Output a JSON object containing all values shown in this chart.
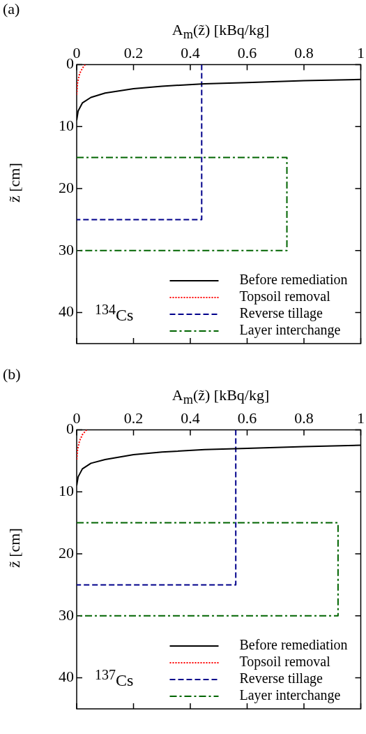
{
  "chart_data": [
    {
      "type": "line",
      "xlabel": "A$_{m}$(z̃) [kBq/kg]",
      "ylabel": "z̃ [cm]",
      "annotations": [
        "(a)",
        "$^{134}$Cs"
      ],
      "xlim": [
        0,
        1
      ],
      "xticks": [
        0,
        0.2,
        0.4,
        0.6,
        0.8,
        1
      ],
      "ylim": [
        45,
        0
      ],
      "yticks": [
        0,
        10,
        20,
        30,
        40
      ],
      "grid": false,
      "legend": "bottom right",
      "marker": "none",
      "series": [
        {
          "name": "Before remediation",
          "color": "#000000",
          "line_style": "solid",
          "x": [
            1.0,
            0.8,
            0.6,
            0.45,
            0.3,
            0.2,
            0.1,
            0.05,
            0.02,
            0.005,
            0
          ],
          "values": [
            2.4,
            2.6,
            2.9,
            3.1,
            3.5,
            3.9,
            4.6,
            5.3,
            6.2,
            7.5,
            9
          ]
        },
        {
          "name": "Topsoil removal",
          "color": "#ff0000",
          "line_style": "dotted",
          "x": [
            0.03,
            0.02,
            0.01,
            0.003,
            0
          ],
          "values": [
            0,
            0.6,
            1.5,
            3,
            5
          ]
        },
        {
          "name": "Reverse tillage",
          "color": "#00008b",
          "line_style": "dashed",
          "x": [
            0.44,
            0.44,
            0
          ],
          "values": [
            0,
            25,
            25
          ]
        },
        {
          "name": "Layer interchange",
          "color": "#006400",
          "line_style": "dashdot",
          "x": [
            0,
            0.74,
            0.74,
            0
          ],
          "values": [
            15,
            15,
            30,
            30
          ]
        }
      ]
    },
    {
      "type": "line",
      "xlabel": "A$_{m}$(z̃) [kBq/kg]",
      "ylabel": "z̃ [cm]",
      "annotations": [
        "(b)",
        "$^{137}$Cs"
      ],
      "xlim": [
        0,
        1
      ],
      "xticks": [
        0,
        0.2,
        0.4,
        0.6,
        0.8,
        1
      ],
      "ylim": [
        45,
        0
      ],
      "yticks": [
        0,
        10,
        20,
        30,
        40
      ],
      "grid": false,
      "legend": "bottom right",
      "marker": "none",
      "series": [
        {
          "name": "Before remediation",
          "color": "#000000",
          "line_style": "solid",
          "x": [
            1.0,
            0.8,
            0.6,
            0.45,
            0.3,
            0.2,
            0.1,
            0.05,
            0.02,
            0.005,
            0
          ],
          "values": [
            2.5,
            2.7,
            3.0,
            3.2,
            3.6,
            4.0,
            4.8,
            5.4,
            6.3,
            7.6,
            9
          ]
        },
        {
          "name": "Topsoil removal",
          "color": "#ff0000",
          "line_style": "dotted",
          "x": [
            0.035,
            0.02,
            0.01,
            0.003,
            0
          ],
          "values": [
            0,
            0.8,
            1.8,
            3.2,
            5
          ]
        },
        {
          "name": "Reverse tillage",
          "color": "#00008b",
          "line_style": "dashed",
          "x": [
            0.56,
            0.56,
            0
          ],
          "values": [
            0,
            25,
            25
          ]
        },
        {
          "name": "Layer interchange",
          "color": "#006400",
          "line_style": "dashdot",
          "x": [
            0,
            0.92,
            0.92,
            0
          ],
          "values": [
            15,
            15,
            30,
            30
          ]
        }
      ]
    }
  ]
}
